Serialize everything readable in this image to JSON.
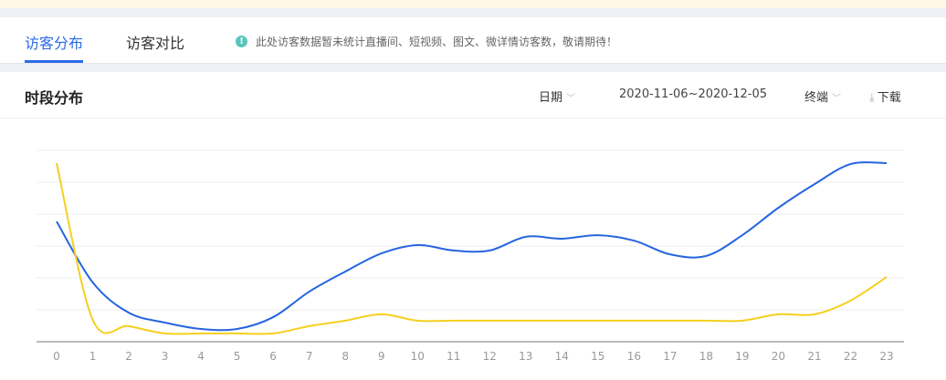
{
  "tabs": [
    {
      "label": "访客分布",
      "active": true
    },
    {
      "label": "访客对比",
      "active": false
    }
  ],
  "notice": "此处访客数据暂未统计直播间、短视频、图文、微详情访客数，敬请期待！",
  "section": {
    "title": "时段分布",
    "date_label": "日期",
    "date_range": "2020-11-06~2020-12-05",
    "terminal_label": "终端",
    "download_label": "下载"
  },
  "colors": {
    "accent": "#2b6ae6",
    "series1": "#2565e0",
    "series2": "#f5cf1f"
  },
  "chart_data": {
    "type": "line",
    "categories": [
      "0",
      "1",
      "2",
      "3",
      "4",
      "5",
      "6",
      "7",
      "8",
      "9",
      "10",
      "11",
      "12",
      "13",
      "14",
      "15",
      "16",
      "17",
      "18",
      "19",
      "20",
      "21",
      "22",
      "23"
    ],
    "ylim": [
      0,
      6
    ],
    "grid": true,
    "series": [
      {
        "name": "blue",
        "values": [
          3.77,
          1.86,
          0.91,
          0.6,
          0.4,
          0.4,
          0.77,
          1.57,
          2.2,
          2.77,
          3.03,
          2.86,
          2.86,
          3.29,
          3.23,
          3.34,
          3.17,
          2.74,
          2.69,
          3.34,
          4.2,
          4.94,
          5.57,
          5.6
        ]
      },
      {
        "name": "yellow",
        "values": [
          5.6,
          0.69,
          0.49,
          0.26,
          0.26,
          0.26,
          0.26,
          0.49,
          0.66,
          0.86,
          0.66,
          0.66,
          0.66,
          0.66,
          0.66,
          0.66,
          0.66,
          0.66,
          0.66,
          0.66,
          0.86,
          0.86,
          1.29,
          2.03
        ]
      }
    ]
  }
}
